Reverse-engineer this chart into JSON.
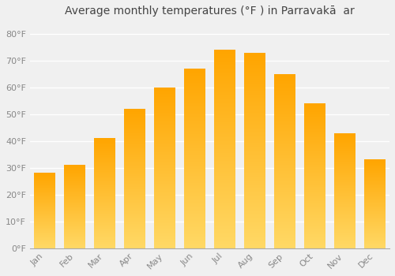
{
  "months": [
    "Jan",
    "Feb",
    "Mar",
    "Apr",
    "May",
    "Jun",
    "Jul",
    "Aug",
    "Sep",
    "Oct",
    "Nov",
    "Dec"
  ],
  "temperatures": [
    28,
    31,
    41,
    52,
    60,
    67,
    74,
    73,
    65,
    54,
    43,
    33
  ],
  "bar_color_bottom": "#FFD966",
  "bar_color_top": "#FFA500",
  "title": "Average monthly temperatures (°F ) in Parravakā  ar",
  "ylim": [
    0,
    85
  ],
  "yticks": [
    0,
    10,
    20,
    30,
    40,
    50,
    60,
    70,
    80
  ],
  "ytick_labels": [
    "0°F",
    "10°F",
    "20°F",
    "30°F",
    "40°F",
    "50°F",
    "60°F",
    "70°F",
    "80°F"
  ],
  "background_color": "#f0f0f0",
  "plot_bg_color": "#f0f0f0",
  "grid_color": "#ffffff",
  "title_fontsize": 10,
  "tick_fontsize": 8,
  "bar_width": 0.7,
  "title_color": "#444444",
  "tick_color": "#888888"
}
